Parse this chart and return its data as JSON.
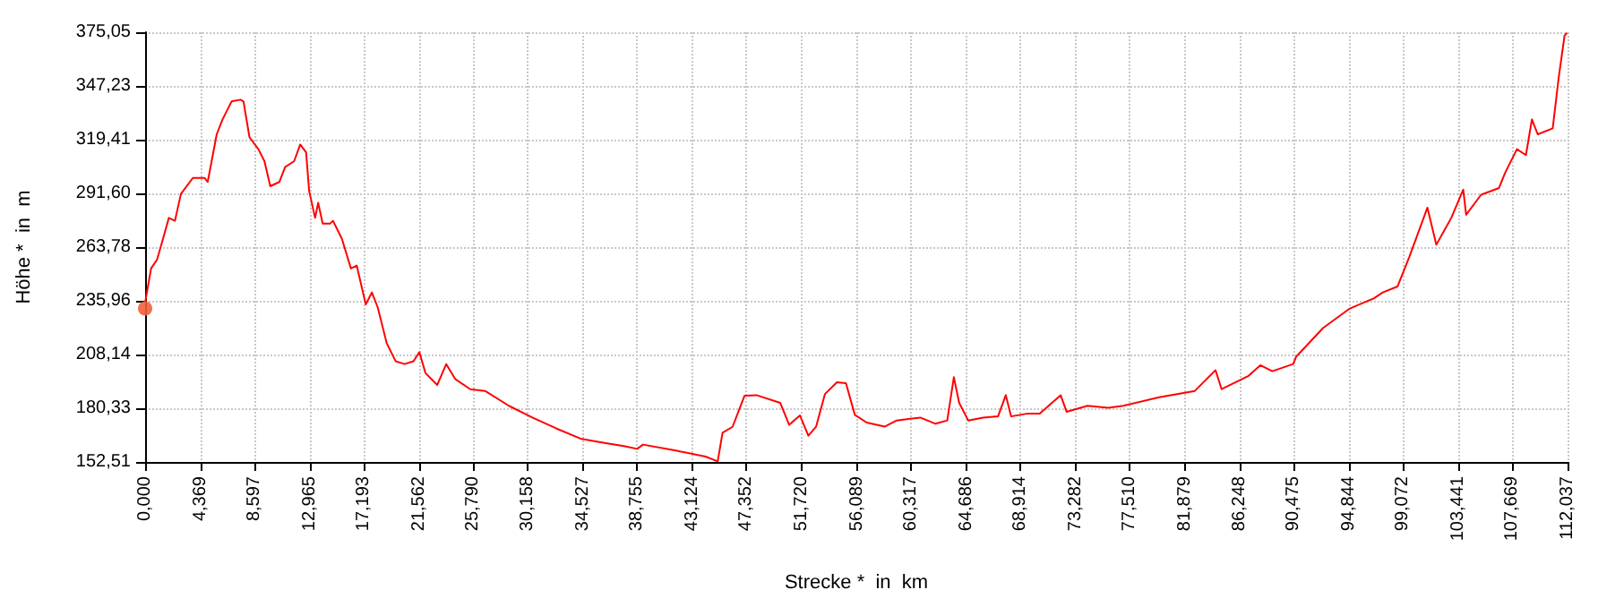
{
  "chart_data": {
    "type": "line",
    "xlabel": "Strecke *  in  km",
    "ylabel": "Höhe *  in  m",
    "grid": true,
    "marker": "none",
    "line_style": "solid",
    "xlim": [
      0,
      112.037
    ],
    "ylim": [
      152.51,
      375.05
    ],
    "xticks": [
      {
        "value": 0,
        "label": "0,000"
      },
      {
        "value": 4.369,
        "label": "4,369"
      },
      {
        "value": 8.597,
        "label": "8,597"
      },
      {
        "value": 12.965,
        "label": "12,965"
      },
      {
        "value": 17.193,
        "label": "17,193"
      },
      {
        "value": 21.562,
        "label": "21,562"
      },
      {
        "value": 25.79,
        "label": "25,790"
      },
      {
        "value": 30.158,
        "label": "30,158"
      },
      {
        "value": 34.527,
        "label": "34,527"
      },
      {
        "value": 38.755,
        "label": "38,755"
      },
      {
        "value": 43.124,
        "label": "43,124"
      },
      {
        "value": 47.352,
        "label": "47,352"
      },
      {
        "value": 51.72,
        "label": "51,720"
      },
      {
        "value": 56.089,
        "label": "56,089"
      },
      {
        "value": 60.317,
        "label": "60,317"
      },
      {
        "value": 64.686,
        "label": "64,686"
      },
      {
        "value": 68.914,
        "label": "68,914"
      },
      {
        "value": 73.282,
        "label": "73,282"
      },
      {
        "value": 77.51,
        "label": "77,510"
      },
      {
        "value": 81.879,
        "label": "81,879"
      },
      {
        "value": 86.248,
        "label": "86,248"
      },
      {
        "value": 90.475,
        "label": "90,475"
      },
      {
        "value": 94.844,
        "label": "94,844"
      },
      {
        "value": 99.072,
        "label": "99,072"
      },
      {
        "value": 103.441,
        "label": "103,441"
      },
      {
        "value": 107.669,
        "label": "107,669"
      },
      {
        "value": 112.037,
        "label": "112,037"
      }
    ],
    "yticks": [
      {
        "value": 152.51,
        "label": "152,51"
      },
      {
        "value": 180.33,
        "label": "180,33"
      },
      {
        "value": 208.14,
        "label": "208,14"
      },
      {
        "value": 235.96,
        "label": "235,96"
      },
      {
        "value": 263.78,
        "label": "263,78"
      },
      {
        "value": 291.6,
        "label": "291,60"
      },
      {
        "value": 319.41,
        "label": "319,41"
      },
      {
        "value": 347.23,
        "label": "347,23"
      },
      {
        "value": 375.05,
        "label": "375,05"
      }
    ],
    "series": [
      {
        "color": "#ff0000",
        "x": [
          0,
          0.47,
          0.94,
          1.41,
          1.87,
          2.35,
          2.82,
          3.76,
          4.69,
          4.93,
          5.64,
          6.1,
          6.81,
          7.51,
          7.75,
          8.22,
          8.92,
          9.4,
          9.86,
          10.57,
          11.03,
          11.74,
          12.22,
          12.68,
          12.92,
          13.39,
          13.63,
          13.99,
          14.56,
          14.8,
          15.5,
          16.21,
          16.67,
          17.38,
          17.86,
          18.32,
          19.03,
          19.73,
          20.43,
          21.14,
          21.6,
          22.08,
          23.01,
          23.72,
          24.42,
          25.61,
          26.78,
          28.65,
          30.54,
          32.41,
          34.29,
          36.18,
          37.81,
          38.75,
          39.22,
          41.81,
          44.15,
          45.1,
          45.48,
          46.27,
          47.21,
          48.16,
          50.03,
          50.73,
          51.58,
          52.24,
          52.85,
          53.55,
          54.49,
          55.2,
          55.9,
          56.84,
          58.25,
          59.19,
          61.06,
          62.25,
          63.18,
          63.7,
          64.12,
          64.83,
          66,
          67.18,
          67.79,
          68.21,
          69.52,
          70.46,
          72.11,
          72.58,
          74.23,
          75.86,
          77.04,
          79.86,
          82.68,
          84.31,
          84.79,
          86.91,
          87.84,
          88.78,
          90.43,
          90.66,
          92.77,
          94.89,
          96.77,
          97.48,
          98.65,
          99.59,
          101,
          101.7,
          102.88,
          103.82,
          104.05,
          105.23,
          106.64,
          107.11,
          108.05,
          108.76,
          109.23,
          109.69,
          110.87,
          111.34,
          111.8,
          112
        ],
        "values": [
          235,
          252.7,
          257.3,
          268.1,
          278.9,
          277.4,
          291.3,
          299.6,
          299.6,
          297.5,
          322.2,
          329.9,
          339.2,
          340.1,
          339.2,
          320.7,
          314.5,
          308.3,
          295.3,
          297.5,
          305.2,
          308.3,
          316.9,
          312.9,
          292.8,
          278.9,
          286.7,
          275.9,
          275.9,
          277.4,
          268.1,
          252.7,
          254.2,
          234.1,
          240.3,
          232.6,
          214,
          204.7,
          203.2,
          204.7,
          209.4,
          198.6,
          192.4,
          203.2,
          195.5,
          190.2,
          189.3,
          181.6,
          175.4,
          169.8,
          164.6,
          162.4,
          160.6,
          159.3,
          161.5,
          158.4,
          155.3,
          152.8,
          167.6,
          170.7,
          186.8,
          187.1,
          183.1,
          171.7,
          176.6,
          166.1,
          170.8,
          187.7,
          193.8,
          193.3,
          176.9,
          172.9,
          170.8,
          174,
          175.5,
          172.3,
          174,
          196.4,
          183.1,
          174,
          175.5,
          176.1,
          187.1,
          176.1,
          177.6,
          177.6,
          187.1,
          178.5,
          181.6,
          180.6,
          181.6,
          186,
          189.3,
          200,
          190.2,
          197.1,
          202.6,
          199.5,
          203.2,
          207,
          221.8,
          232,
          237.2,
          240.3,
          243.4,
          259,
          284.2,
          265,
          278.9,
          293.5,
          280.5,
          290.9,
          294.4,
          302.1,
          314.5,
          311.4,
          329.9,
          322.2,
          325.3,
          351.6,
          373.2,
          374.8
        ]
      },
      {
        "type": "scatter",
        "marker": "circle",
        "color": "#f0603a",
        "x": [
          0
        ],
        "values": [
          232
        ]
      }
    ]
  }
}
